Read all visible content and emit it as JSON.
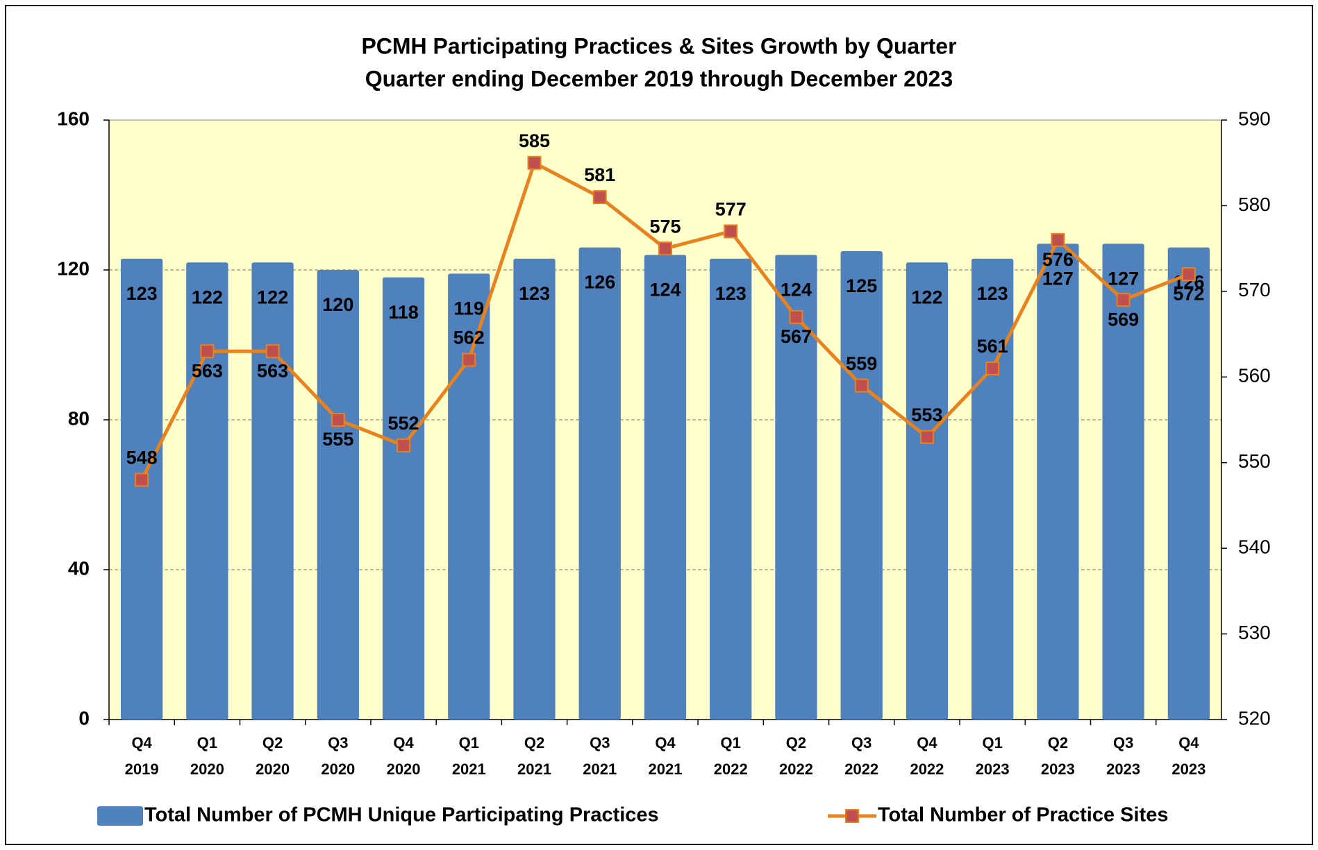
{
  "chart_data": {
    "type": "bar_line",
    "title": "PCMH Participating Practices & Sites Growth by Quarter",
    "subtitle": "Quarter ending December 2019 through December 2023",
    "categories": [
      "Q4 2019",
      "Q1 2020",
      "Q2 2020",
      "Q3 2020",
      "Q4 2020",
      "Q1 2021",
      "Q2 2021",
      "Q3 2021",
      "Q4 2021",
      "Q1 2022",
      "Q2 2022",
      "Q3 2022",
      "Q4 2022",
      "Q1 2023",
      "Q2 2023",
      "Q3 2023",
      "Q4 2023"
    ],
    "series": [
      {
        "name": "Total Number of PCMH Unique Participating Practices",
        "type": "bar",
        "color": "#4f81bd",
        "values": [
          123,
          122,
          122,
          120,
          118,
          119,
          123,
          126,
          124,
          123,
          124,
          125,
          122,
          123,
          127,
          127,
          126
        ]
      },
      {
        "name": "Total Number of Practice Sites",
        "type": "line",
        "axis": "y2",
        "color": "#e8821e",
        "marker_color": "#c0504d",
        "values": [
          548,
          563,
          563,
          555,
          552,
          562,
          585,
          581,
          575,
          577,
          567,
          559,
          553,
          561,
          576,
          569,
          572
        ]
      }
    ],
    "ylim": [
      0,
      160
    ],
    "yticks": [
      0,
      40,
      80,
      120,
      160
    ],
    "y2lim": [
      520,
      590
    ],
    "y2ticks": [
      520,
      530,
      540,
      550,
      560,
      570,
      580,
      590
    ],
    "grid": true,
    "legend": "bottom",
    "plot_background": "#ffffcc"
  }
}
